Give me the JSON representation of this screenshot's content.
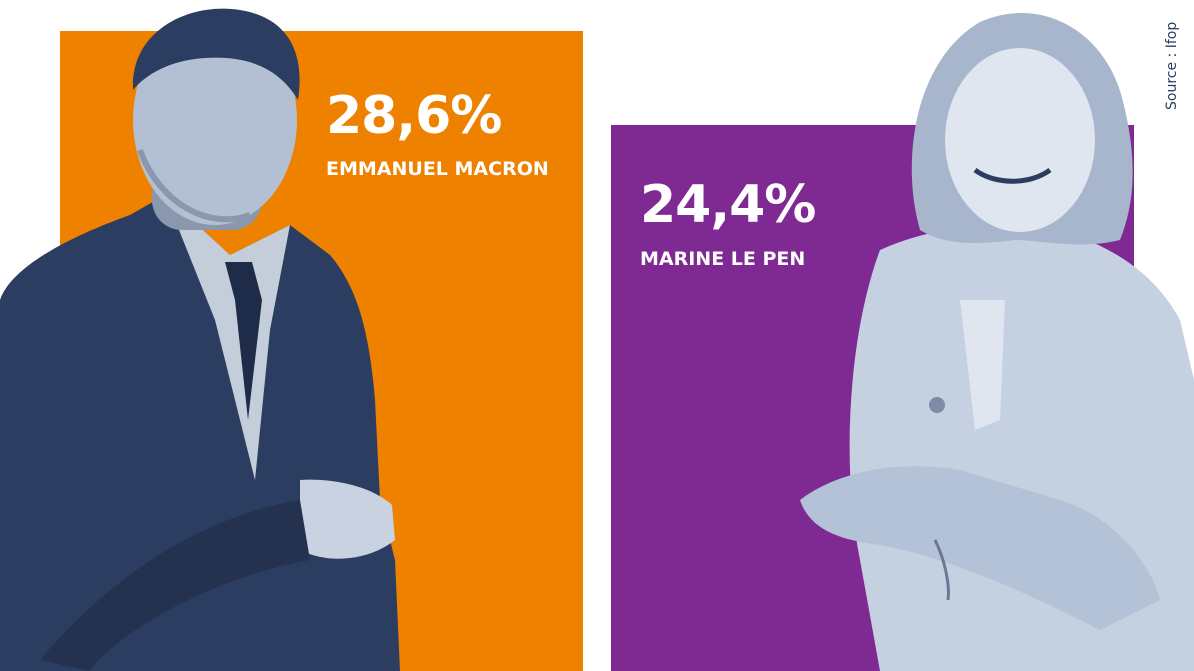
{
  "chart_data": {
    "type": "bar",
    "categories": [
      "EMMANUEL MACRON",
      "MARINE LE PEN"
    ],
    "series": [
      {
        "values": [
          28.6,
          24.4
        ]
      }
    ],
    "value_labels": [
      "28,6%",
      "24,4%"
    ],
    "title": "",
    "xlabel": "",
    "ylabel": "",
    "ylim": [
      0,
      28.6
    ],
    "grid": false,
    "legend": "none"
  },
  "source": "Source : Ifop",
  "colors": {
    "macron_bar": "#ee8200",
    "lepen_bar": "#7e2a92",
    "photo_tint": "#2c3d62",
    "photo_light": "#dfe6f0",
    "text": "#ffffff",
    "source_text": "#2c3d62"
  }
}
